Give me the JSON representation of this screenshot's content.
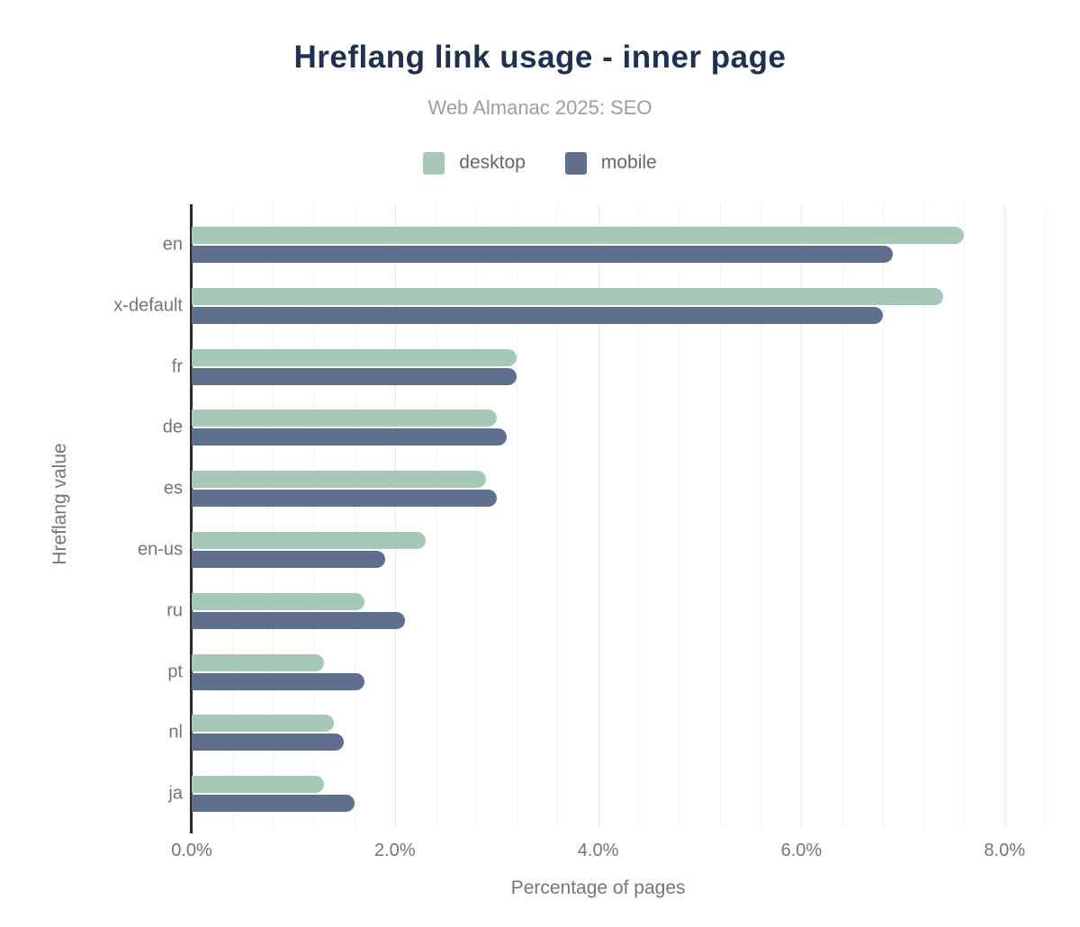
{
  "chart_data": {
    "type": "bar",
    "orientation": "horizontal",
    "title": "Hreflang link usage - inner page",
    "subtitle": "Web Almanac 2025: SEO",
    "categories": [
      "en",
      "x-default",
      "fr",
      "de",
      "es",
      "en-us",
      "ru",
      "pt",
      "nl",
      "ja"
    ],
    "series": [
      {
        "name": "desktop",
        "color": "#a6c9b7",
        "values": [
          7.6,
          7.4,
          3.2,
          3.0,
          2.9,
          2.3,
          1.7,
          1.3,
          1.4,
          1.3
        ]
      },
      {
        "name": "mobile",
        "color": "#5e708e",
        "values": [
          6.9,
          6.8,
          3.2,
          3.1,
          3.0,
          1.9,
          2.1,
          1.7,
          1.5,
          1.6
        ]
      }
    ],
    "xlabel": "Percentage of pages",
    "ylabel": "Hreflang value",
    "x_ticks": [
      "0.0%",
      "2.0%",
      "4.0%",
      "6.0%",
      "8.0%"
    ],
    "x_tick_values": [
      0,
      2,
      4,
      6,
      8
    ],
    "xlim": [
      0,
      8.5
    ],
    "grid": {
      "minor_step_pct": 0.4,
      "major_step_pct": 2.0,
      "vertical_only": true
    },
    "legend_position": "top",
    "colors": {
      "title": "#1f3150",
      "subtitle": "#9e9e9e",
      "axis_text": "#757575",
      "legend_text": "#666666",
      "axis_line": "#2b2b2b",
      "gridline_minor": "#f2f2f2",
      "gridline_major": "#e9e9e9",
      "background": "#ffffff"
    }
  }
}
